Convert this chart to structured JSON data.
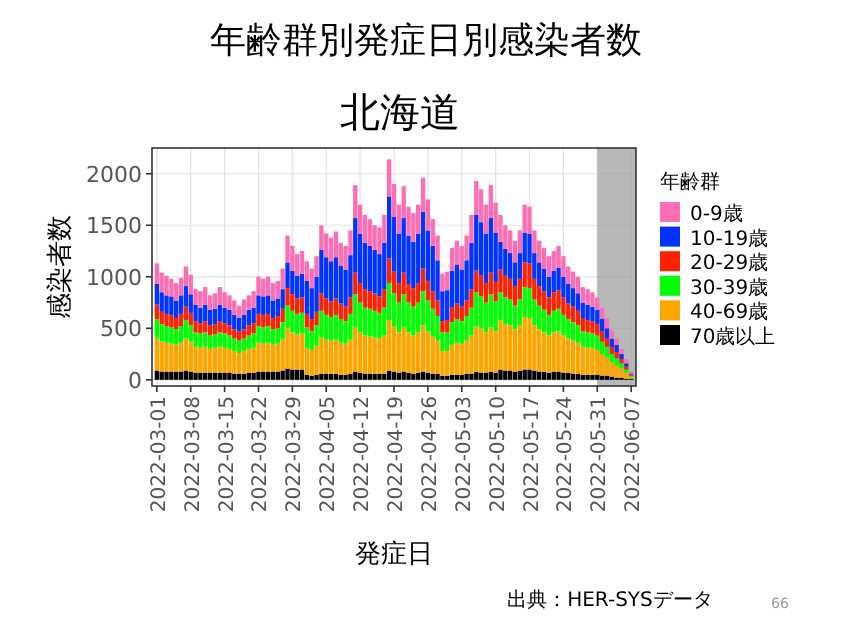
{
  "chart_data": {
    "type": "bar",
    "stacked": true,
    "title": "年齢群別発症日別感染者数",
    "subtitle": "北海道",
    "xlabel": "発症日",
    "ylabel": "感染者数",
    "legend_title": "年齢群",
    "legend": "right",
    "grid": true,
    "x": [
      "2022-03-01",
      "2022-03-02",
      "2022-03-03",
      "2022-03-04",
      "2022-03-05",
      "2022-03-06",
      "2022-03-07",
      "2022-03-08",
      "2022-03-09",
      "2022-03-10",
      "2022-03-11",
      "2022-03-12",
      "2022-03-13",
      "2022-03-14",
      "2022-03-15",
      "2022-03-16",
      "2022-03-17",
      "2022-03-18",
      "2022-03-19",
      "2022-03-20",
      "2022-03-21",
      "2022-03-22",
      "2022-03-23",
      "2022-03-24",
      "2022-03-25",
      "2022-03-26",
      "2022-03-27",
      "2022-03-28",
      "2022-03-29",
      "2022-03-30",
      "2022-03-31",
      "2022-04-01",
      "2022-04-02",
      "2022-04-03",
      "2022-04-04",
      "2022-04-05",
      "2022-04-06",
      "2022-04-07",
      "2022-04-08",
      "2022-04-09",
      "2022-04-10",
      "2022-04-11",
      "2022-04-12",
      "2022-04-13",
      "2022-04-14",
      "2022-04-15",
      "2022-04-16",
      "2022-04-17",
      "2022-04-18",
      "2022-04-19",
      "2022-04-20",
      "2022-04-21",
      "2022-04-22",
      "2022-04-23",
      "2022-04-24",
      "2022-04-25",
      "2022-04-26",
      "2022-04-27",
      "2022-04-28",
      "2022-04-29",
      "2022-04-30",
      "2022-05-01",
      "2022-05-02",
      "2022-05-03",
      "2022-05-04",
      "2022-05-05",
      "2022-05-06",
      "2022-05-07",
      "2022-05-08",
      "2022-05-09",
      "2022-05-10",
      "2022-05-11",
      "2022-05-12",
      "2022-05-13",
      "2022-05-14",
      "2022-05-15",
      "2022-05-16",
      "2022-05-17",
      "2022-05-18",
      "2022-05-19",
      "2022-05-20",
      "2022-05-21",
      "2022-05-22",
      "2022-05-23",
      "2022-05-24",
      "2022-05-25",
      "2022-05-26",
      "2022-05-27",
      "2022-05-28",
      "2022-05-29",
      "2022-05-30",
      "2022-05-31",
      "2022-06-01",
      "2022-06-02",
      "2022-06-03",
      "2022-06-04",
      "2022-06-05",
      "2022-06-06",
      "2022-06-07"
    ],
    "series": [
      {
        "name": "70歳以上",
        "color": "#000000",
        "values": [
          90,
          80,
          80,
          80,
          80,
          80,
          90,
          80,
          70,
          70,
          70,
          70,
          70,
          70,
          70,
          70,
          60,
          60,
          60,
          70,
          70,
          80,
          80,
          80,
          80,
          80,
          90,
          110,
          100,
          100,
          100,
          50,
          40,
          50,
          60,
          60,
          60,
          60,
          50,
          50,
          60,
          80,
          70,
          60,
          60,
          60,
          60,
          60,
          90,
          80,
          70,
          80,
          70,
          60,
          70,
          80,
          70,
          60,
          60,
          40,
          40,
          50,
          50,
          50,
          60,
          60,
          80,
          70,
          70,
          80,
          70,
          100,
          90,
          90,
          80,
          90,
          100,
          100,
          90,
          80,
          80,
          70,
          80,
          80,
          70,
          70,
          60,
          60,
          50,
          50,
          50,
          50,
          40,
          40,
          30,
          20,
          20,
          10,
          10
        ]
      },
      {
        "name": "40-69歳",
        "color": "#ffa500",
        "values": [
          320,
          290,
          280,
          270,
          260,
          280,
          310,
          290,
          250,
          240,
          250,
          230,
          240,
          250,
          240,
          230,
          220,
          200,
          220,
          230,
          240,
          280,
          270,
          280,
          260,
          270,
          300,
          390,
          360,
          340,
          350,
          260,
          250,
          280,
          350,
          330,
          320,
          330,
          310,
          300,
          330,
          430,
          390,
          370,
          360,
          350,
          340,
          370,
          490,
          440,
          390,
          430,
          390,
          370,
          390,
          450,
          400,
          360,
          320,
          240,
          240,
          290,
          310,
          300,
          320,
          370,
          440,
          430,
          390,
          430,
          400,
          480,
          450,
          440,
          410,
          440,
          510,
          500,
          440,
          410,
          380,
          360,
          380,
          390,
          360,
          330,
          320,
          300,
          270,
          260,
          260,
          240,
          210,
          180,
          140,
          120,
          90,
          60,
          20
        ]
      },
      {
        "name": "30-39歳",
        "color": "#00ff00",
        "values": [
          180,
          170,
          160,
          160,
          150,
          160,
          180,
          160,
          140,
          140,
          140,
          130,
          130,
          140,
          140,
          130,
          120,
          120,
          120,
          130,
          140,
          160,
          160,
          160,
          150,
          150,
          170,
          220,
          210,
          200,
          200,
          200,
          180,
          200,
          260,
          240,
          230,
          240,
          230,
          220,
          250,
          320,
          290,
          270,
          270,
          260,
          250,
          270,
          360,
          320,
          290,
          320,
          290,
          280,
          290,
          330,
          300,
          270,
          240,
          180,
          180,
          220,
          230,
          220,
          240,
          270,
          330,
          310,
          290,
          320,
          290,
          270,
          260,
          250,
          230,
          250,
          290,
          290,
          250,
          230,
          220,
          200,
          210,
          220,
          200,
          190,
          180,
          170,
          150,
          150,
          140,
          140,
          120,
          100,
          80,
          70,
          50,
          30,
          10
        ]
      },
      {
        "name": "20-29歳",
        "color": "#ff2200",
        "values": [
          140,
          120,
          120,
          120,
          110,
          120,
          130,
          120,
          110,
          100,
          110,
          100,
          100,
          110,
          100,
          100,
          90,
          90,
          90,
          100,
          100,
          120,
          120,
          120,
          110,
          120,
          130,
          170,
          160,
          150,
          150,
          130,
          120,
          130,
          170,
          160,
          150,
          160,
          150,
          140,
          160,
          210,
          190,
          180,
          170,
          170,
          160,
          180,
          240,
          210,
          190,
          210,
          180,
          180,
          190,
          220,
          190,
          170,
          150,
          110,
          120,
          140,
          150,
          140,
          150,
          180,
          210,
          200,
          190,
          210,
          190,
          220,
          210,
          200,
          190,
          200,
          240,
          240,
          200,
          190,
          180,
          170,
          180,
          180,
          170,
          150,
          150,
          140,
          130,
          120,
          120,
          110,
          100,
          80,
          70,
          60,
          40,
          30,
          10
        ]
      },
      {
        "name": "10-19歳",
        "color": "#0033ff",
        "values": [
          200,
          190,
          180,
          180,
          170,
          180,
          200,
          180,
          160,
          150,
          160,
          150,
          150,
          160,
          150,
          150,
          140,
          130,
          140,
          150,
          150,
          180,
          180,
          180,
          170,
          170,
          190,
          250,
          230,
          220,
          230,
          320,
          300,
          340,
          420,
          400,
          390,
          400,
          370,
          360,
          410,
          530,
          480,
          450,
          440,
          420,
          410,
          450,
          600,
          530,
          480,
          530,
          470,
          450,
          480,
          550,
          490,
          440,
          390,
          290,
          290,
          360,
          380,
          360,
          390,
          450,
          540,
          520,
          480,
          530,
          480,
          270,
          260,
          250,
          230,
          250,
          290,
          290,
          250,
          230,
          220,
          200,
          210,
          220,
          200,
          190,
          180,
          170,
          150,
          150,
          140,
          140,
          120,
          100,
          80,
          70,
          50,
          30,
          10
        ]
      },
      {
        "name": "0-9歳",
        "color": "#ff6eb4",
        "values": [
          200,
          190,
          190,
          170,
          170,
          170,
          190,
          190,
          150,
          160,
          170,
          140,
          150,
          170,
          150,
          140,
          140,
          120,
          150,
          140,
          160,
          180,
          170,
          180,
          170,
          170,
          200,
          260,
          240,
          210,
          220,
          190,
          190,
          200,
          240,
          230,
          230,
          250,
          220,
          230,
          240,
          320,
          280,
          270,
          260,
          240,
          260,
          270,
          360,
          320,
          280,
          310,
          280,
          280,
          280,
          330,
          300,
          260,
          240,
          170,
          180,
          220,
          230,
          230,
          240,
          270,
          330,
          320,
          280,
          320,
          290,
          260,
          230,
          220,
          210,
          220,
          270,
          260,
          220,
          210,
          200,
          200,
          190,
          210,
          200,
          170,
          160,
          160,
          150,
          150,
          140,
          120,
          110,
          100,
          80,
          60,
          50,
          40,
          20
        ]
      }
    ],
    "xlim": [
      "2022-02-28",
      "2022-06-08"
    ],
    "xticks": [
      "2022-03-01",
      "2022-03-08",
      "2022-03-15",
      "2022-03-22",
      "2022-03-29",
      "2022-04-05",
      "2022-04-12",
      "2022-04-19",
      "2022-04-26",
      "2022-05-03",
      "2022-05-10",
      "2022-05-17",
      "2022-05-24",
      "2022-05-31",
      "2022-06-07"
    ],
    "ylim": [
      -60,
      2250
    ],
    "yticks": [
      0,
      500,
      1000,
      1500,
      2000
    ],
    "bands": [
      {
        "axis": "x",
        "from": "2022-05-31",
        "to": "2022-06-08",
        "color": "#9a9a9a"
      }
    ],
    "annotations": [
      "出典：HER-SYSデータ",
      "66"
    ]
  }
}
